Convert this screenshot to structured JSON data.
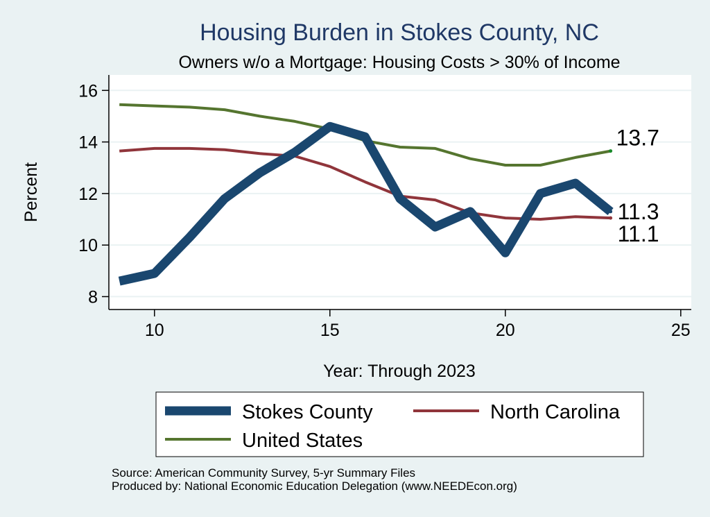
{
  "chart_data": {
    "type": "line",
    "title": "Housing Burden in Stokes County, NC",
    "subtitle": "Owners w/o a Mortgage: Housing Costs > 30% of Income",
    "xlabel": "Year: Through 2023",
    "ylabel": "Percent",
    "xlim": [
      8.7,
      25.3
    ],
    "ylim": [
      7.5,
      16.6
    ],
    "xticks": [
      10,
      15,
      20,
      25
    ],
    "yticks": [
      8,
      10,
      12,
      14,
      16
    ],
    "grid": true,
    "legend_position": "bottom",
    "series": [
      {
        "name": "Stokes County",
        "color": "#1a476f",
        "x": [
          9,
          10,
          11,
          12,
          13,
          14,
          15,
          16,
          17,
          18,
          19,
          20,
          21,
          22,
          23
        ],
        "values": [
          8.6,
          8.9,
          10.3,
          11.8,
          12.8,
          13.6,
          14.6,
          14.2,
          11.8,
          10.7,
          11.3,
          9.7,
          12.0,
          12.4,
          11.3
        ],
        "end_label": "11.3"
      },
      {
        "name": "North Carolina",
        "color": "#90353b",
        "x": [
          9,
          10,
          11,
          12,
          13,
          14,
          15,
          16,
          17,
          18,
          19,
          20,
          21,
          22,
          23
        ],
        "values": [
          13.65,
          13.75,
          13.75,
          13.7,
          13.55,
          13.45,
          13.05,
          12.45,
          11.9,
          11.75,
          11.25,
          11.05,
          11.0,
          11.1,
          11.05
        ],
        "end_label": "11.1"
      },
      {
        "name": "United States",
        "color": "#55752f",
        "x": [
          9,
          10,
          11,
          12,
          13,
          14,
          15,
          16,
          17,
          18,
          19,
          20,
          21,
          22,
          23
        ],
        "values": [
          15.45,
          15.4,
          15.35,
          15.25,
          15.0,
          14.8,
          14.5,
          14.05,
          13.8,
          13.75,
          13.35,
          13.1,
          13.1,
          13.4,
          13.65
        ],
        "end_label": "13.7"
      }
    ],
    "notes": [
      "Source: American Community Survey, 5-yr Summary Files",
      "Produced by: National Economic Education Delegation (www.NEEDEcon.org)"
    ]
  }
}
